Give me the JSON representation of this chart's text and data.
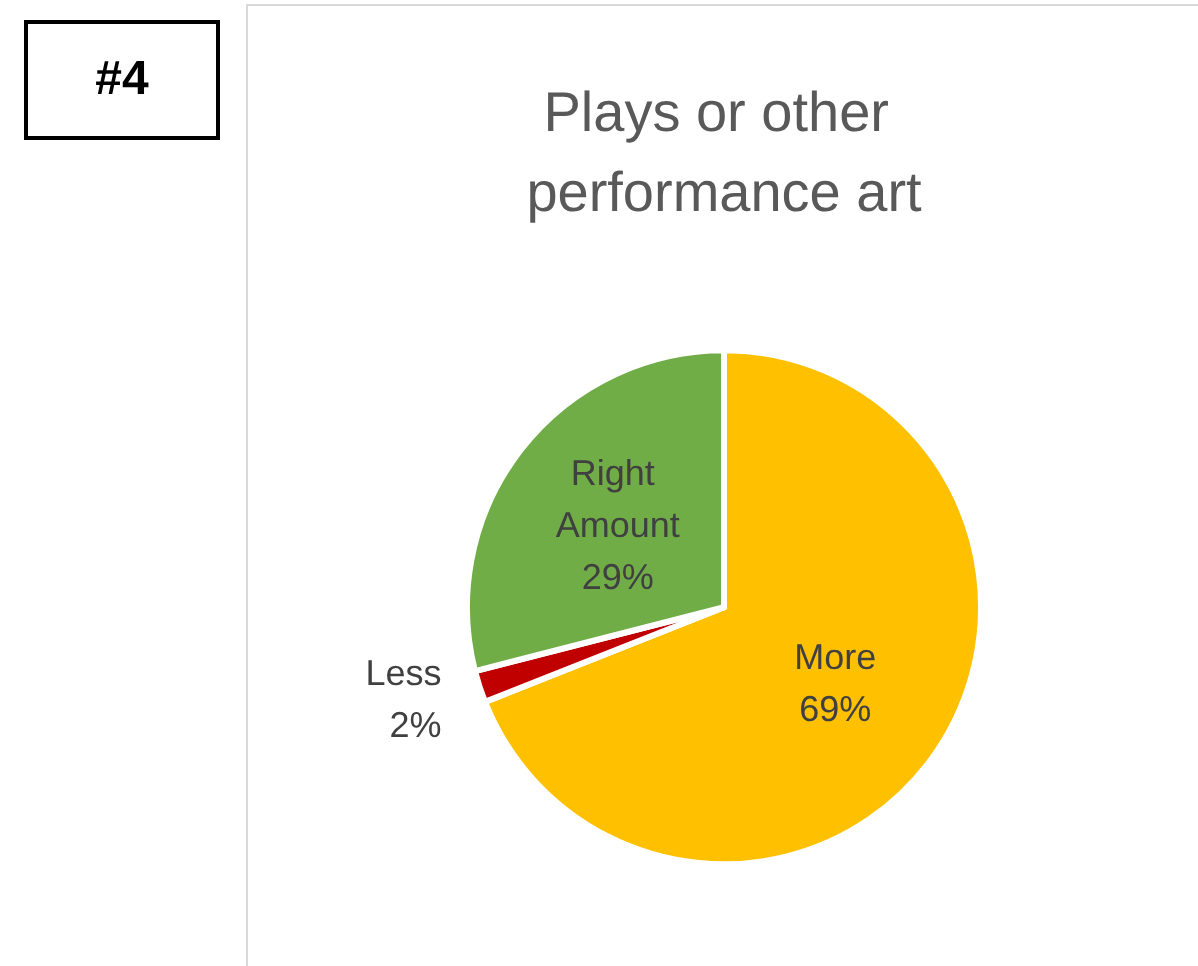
{
  "chart_data": {
    "type": "pie",
    "title": "Plays or other performance art",
    "categories": [
      "More",
      "Less",
      "Right Amount"
    ],
    "values": [
      69,
      2,
      29
    ],
    "colors": [
      "#ffc000",
      "#c00000",
      "#70ad47"
    ],
    "value_labels": [
      "69%",
      "2%",
      "29%"
    ],
    "legend": false,
    "annotations": [
      "#4"
    ]
  }
}
